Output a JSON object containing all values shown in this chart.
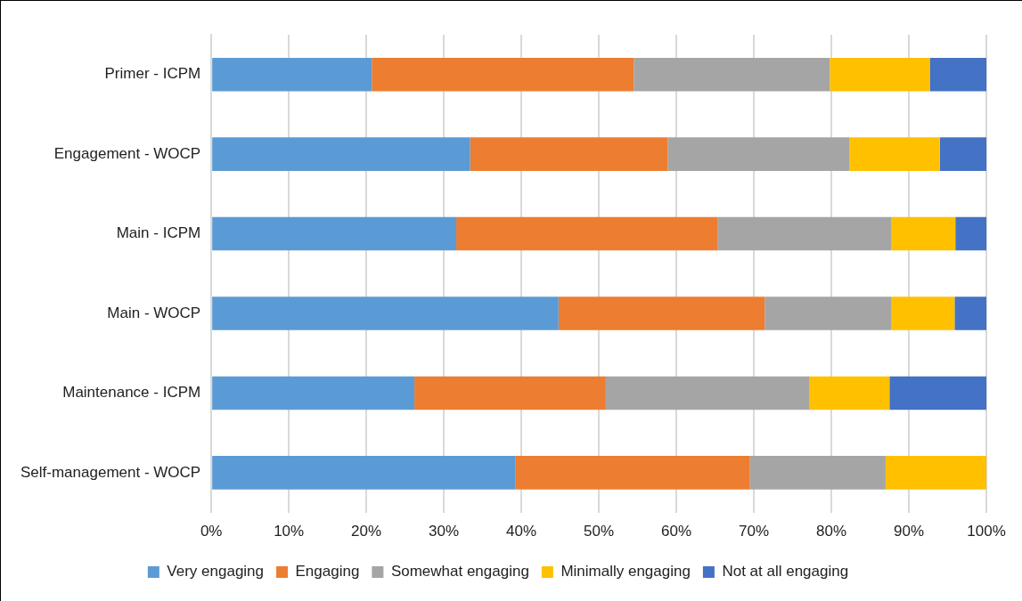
{
  "chart_data": {
    "type": "bar",
    "orientation": "horizontal",
    "stacked": true,
    "categories": [
      "Primer - ICPM",
      "Engagement - WOCP",
      "Main - ICPM",
      "Main - WOCP",
      "Maintenance - ICPM",
      "Self-management - WOCP"
    ],
    "series": [
      {
        "name": "Very engaging",
        "color": "#5b9bd5",
        "values": [
          20.7,
          33.4,
          31.6,
          44.8,
          26.2,
          39.2
        ]
      },
      {
        "name": "Engaging",
        "color": "#ed7d31",
        "values": [
          33.8,
          25.5,
          33.7,
          26.6,
          24.7,
          30.3
        ]
      },
      {
        "name": "Somewhat engaging",
        "color": "#a5a5a5",
        "values": [
          25.3,
          23.4,
          22.4,
          16.3,
          26.3,
          17.5
        ]
      },
      {
        "name": "Minimally engaging",
        "color": "#ffc000",
        "values": [
          12.9,
          11.7,
          8.3,
          8.2,
          10.3,
          13.0
        ]
      },
      {
        "name": "Not at all engaging",
        "color": "#4472c4",
        "values": [
          7.3,
          6.0,
          4.0,
          4.1,
          12.5,
          0
        ]
      }
    ],
    "xlim": [
      0,
      100
    ],
    "xticks": [
      {
        "value": 0,
        "label": "0%"
      },
      {
        "value": 10,
        "label": "10%"
      },
      {
        "value": 20,
        "label": "20%"
      },
      {
        "value": 30,
        "label": "30%"
      },
      {
        "value": 40,
        "label": "40%"
      },
      {
        "value": 50,
        "label": "50%"
      },
      {
        "value": 60,
        "label": "60%"
      },
      {
        "value": 70,
        "label": "70%"
      },
      {
        "value": 80,
        "label": "80%"
      },
      {
        "value": 90,
        "label": "90%"
      },
      {
        "value": 100,
        "label": "100%"
      }
    ],
    "grid": "x",
    "legend": "bottom"
  }
}
